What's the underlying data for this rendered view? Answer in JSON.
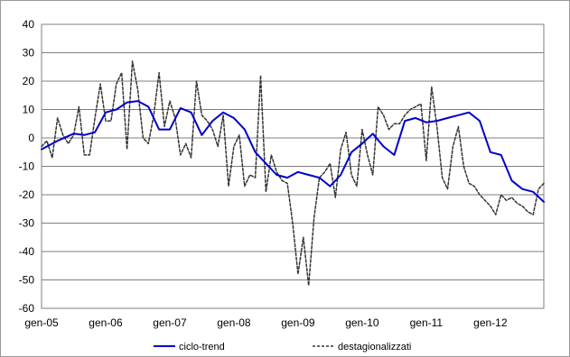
{
  "chart_data": {
    "type": "line",
    "title": "",
    "xlabel": "",
    "ylabel": "",
    "ylim": [
      -60,
      40
    ],
    "yticks": [
      -60,
      -50,
      -40,
      -30,
      -20,
      -10,
      0,
      10,
      20,
      30,
      40
    ],
    "xlim": [
      0,
      94
    ],
    "xtick_labels": [
      "gen-05",
      "gen-06",
      "gen-07",
      "gen-08",
      "gen-09",
      "gen-10",
      "gen-11",
      "gen-12"
    ],
    "xtick_positions": [
      0,
      12,
      24,
      36,
      48,
      60,
      72,
      84
    ],
    "grid": true,
    "legend_position": "bottom",
    "series": [
      {
        "name": "ciclo-trend",
        "color": "#0000cc",
        "style": "solid",
        "x": [
          0,
          3,
          6,
          8,
          10,
          12,
          14,
          16,
          18,
          20,
          22,
          24,
          26,
          28,
          30,
          32,
          34,
          36,
          38,
          40,
          42,
          44,
          46,
          48,
          50,
          52,
          54,
          56,
          58,
          60,
          62,
          64,
          66,
          68,
          70,
          72,
          74,
          76,
          78,
          80,
          82,
          84,
          86,
          88,
          90,
          92,
          94
        ],
        "y": [
          -4,
          -1,
          1.5,
          1,
          2,
          9,
          10,
          12.5,
          13,
          11,
          3,
          3,
          10.5,
          9,
          1,
          6,
          9,
          7,
          3,
          -5,
          -9,
          -13,
          -14,
          -12,
          -13,
          -14,
          -17,
          -13,
          -5,
          -2,
          1.5,
          -3,
          -6,
          6,
          7,
          5.5,
          6,
          7,
          8,
          9,
          6,
          -5,
          -6,
          -15,
          -18,
          -19,
          -22.5
        ]
      },
      {
        "name": "destagionalizzati",
        "color": "#333333",
        "style": "dashed",
        "x": [
          0,
          1,
          2,
          3,
          4,
          5,
          6,
          7,
          8,
          9,
          10,
          11,
          12,
          13,
          14,
          15,
          16,
          17,
          18,
          19,
          20,
          21,
          22,
          23,
          24,
          25,
          26,
          27,
          28,
          29,
          30,
          31,
          32,
          33,
          34,
          35,
          36,
          37,
          38,
          39,
          40,
          41,
          42,
          43,
          44,
          45,
          46,
          47,
          48,
          49,
          50,
          51,
          52,
          53,
          54,
          55,
          56,
          57,
          58,
          59,
          60,
          61,
          62,
          63,
          64,
          65,
          66,
          67,
          68,
          69,
          70,
          71,
          72,
          73,
          74,
          75,
          76,
          77,
          78,
          79,
          80,
          81,
          82,
          83,
          84,
          85,
          86,
          87,
          88,
          89,
          90,
          91,
          92,
          93,
          94
        ],
        "y": [
          -3,
          -1,
          -7,
          7,
          1,
          -2,
          1,
          11,
          -6,
          -6,
          7,
          19,
          6,
          6,
          19,
          23,
          -4,
          27,
          17,
          0,
          -2,
          8,
          23,
          4,
          13,
          7,
          -6,
          -2,
          -7,
          20,
          8,
          6,
          3,
          -3,
          8,
          -17,
          -3,
          1,
          -17,
          -13,
          -14,
          22,
          -19,
          -6,
          -12,
          -15,
          -16,
          -30,
          -48,
          -35,
          -52,
          -28,
          -14,
          -12,
          -9,
          -21,
          -4,
          2,
          -13,
          -17,
          3,
          -6,
          -13,
          11,
          8,
          3,
          5,
          5,
          8,
          10,
          11,
          12,
          -8,
          18,
          4,
          -14,
          -18,
          -3,
          4,
          -10,
          -16,
          -17,
          -20,
          -22,
          -24,
          -27,
          -20,
          -22,
          -21,
          -23,
          -24,
          -26,
          -27,
          -18,
          -16
        ]
      }
    ]
  }
}
